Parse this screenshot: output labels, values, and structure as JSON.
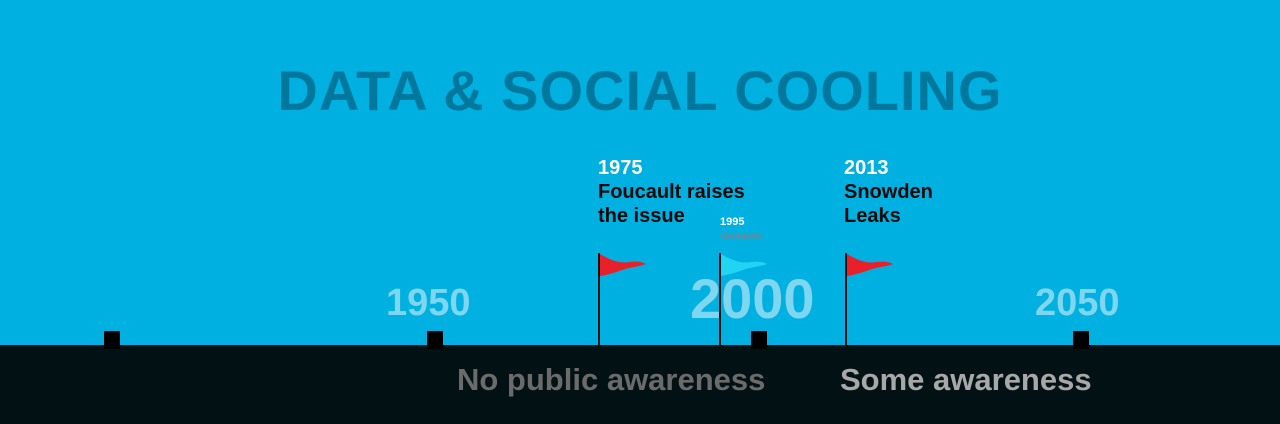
{
  "title": "DATA & SOCIAL COOLING",
  "years": {
    "y1950": "1950",
    "y2000": "2000",
    "y2050": "2050"
  },
  "events": [
    {
      "year": "1975",
      "text_line1": "Foucault raises",
      "text_line2": "the issue",
      "flag_color": "#e8202a"
    },
    {
      "year": "1995",
      "text_line1": "Deleuze",
      "flag_color": "#22d4f4"
    },
    {
      "year": "2013",
      "text_line1": "Snowden",
      "text_line2": "Leaks",
      "flag_color": "#e8202a"
    }
  ],
  "awareness": {
    "none": "No public awareness",
    "some": "Some awareness"
  },
  "colors": {
    "sky": "#00b0e0",
    "ground": "#021214",
    "title": "#00789e",
    "year_label": "#7fd6f0",
    "awareness_none": "#6b6b6b",
    "awareness_some": "#a8a8a8"
  }
}
